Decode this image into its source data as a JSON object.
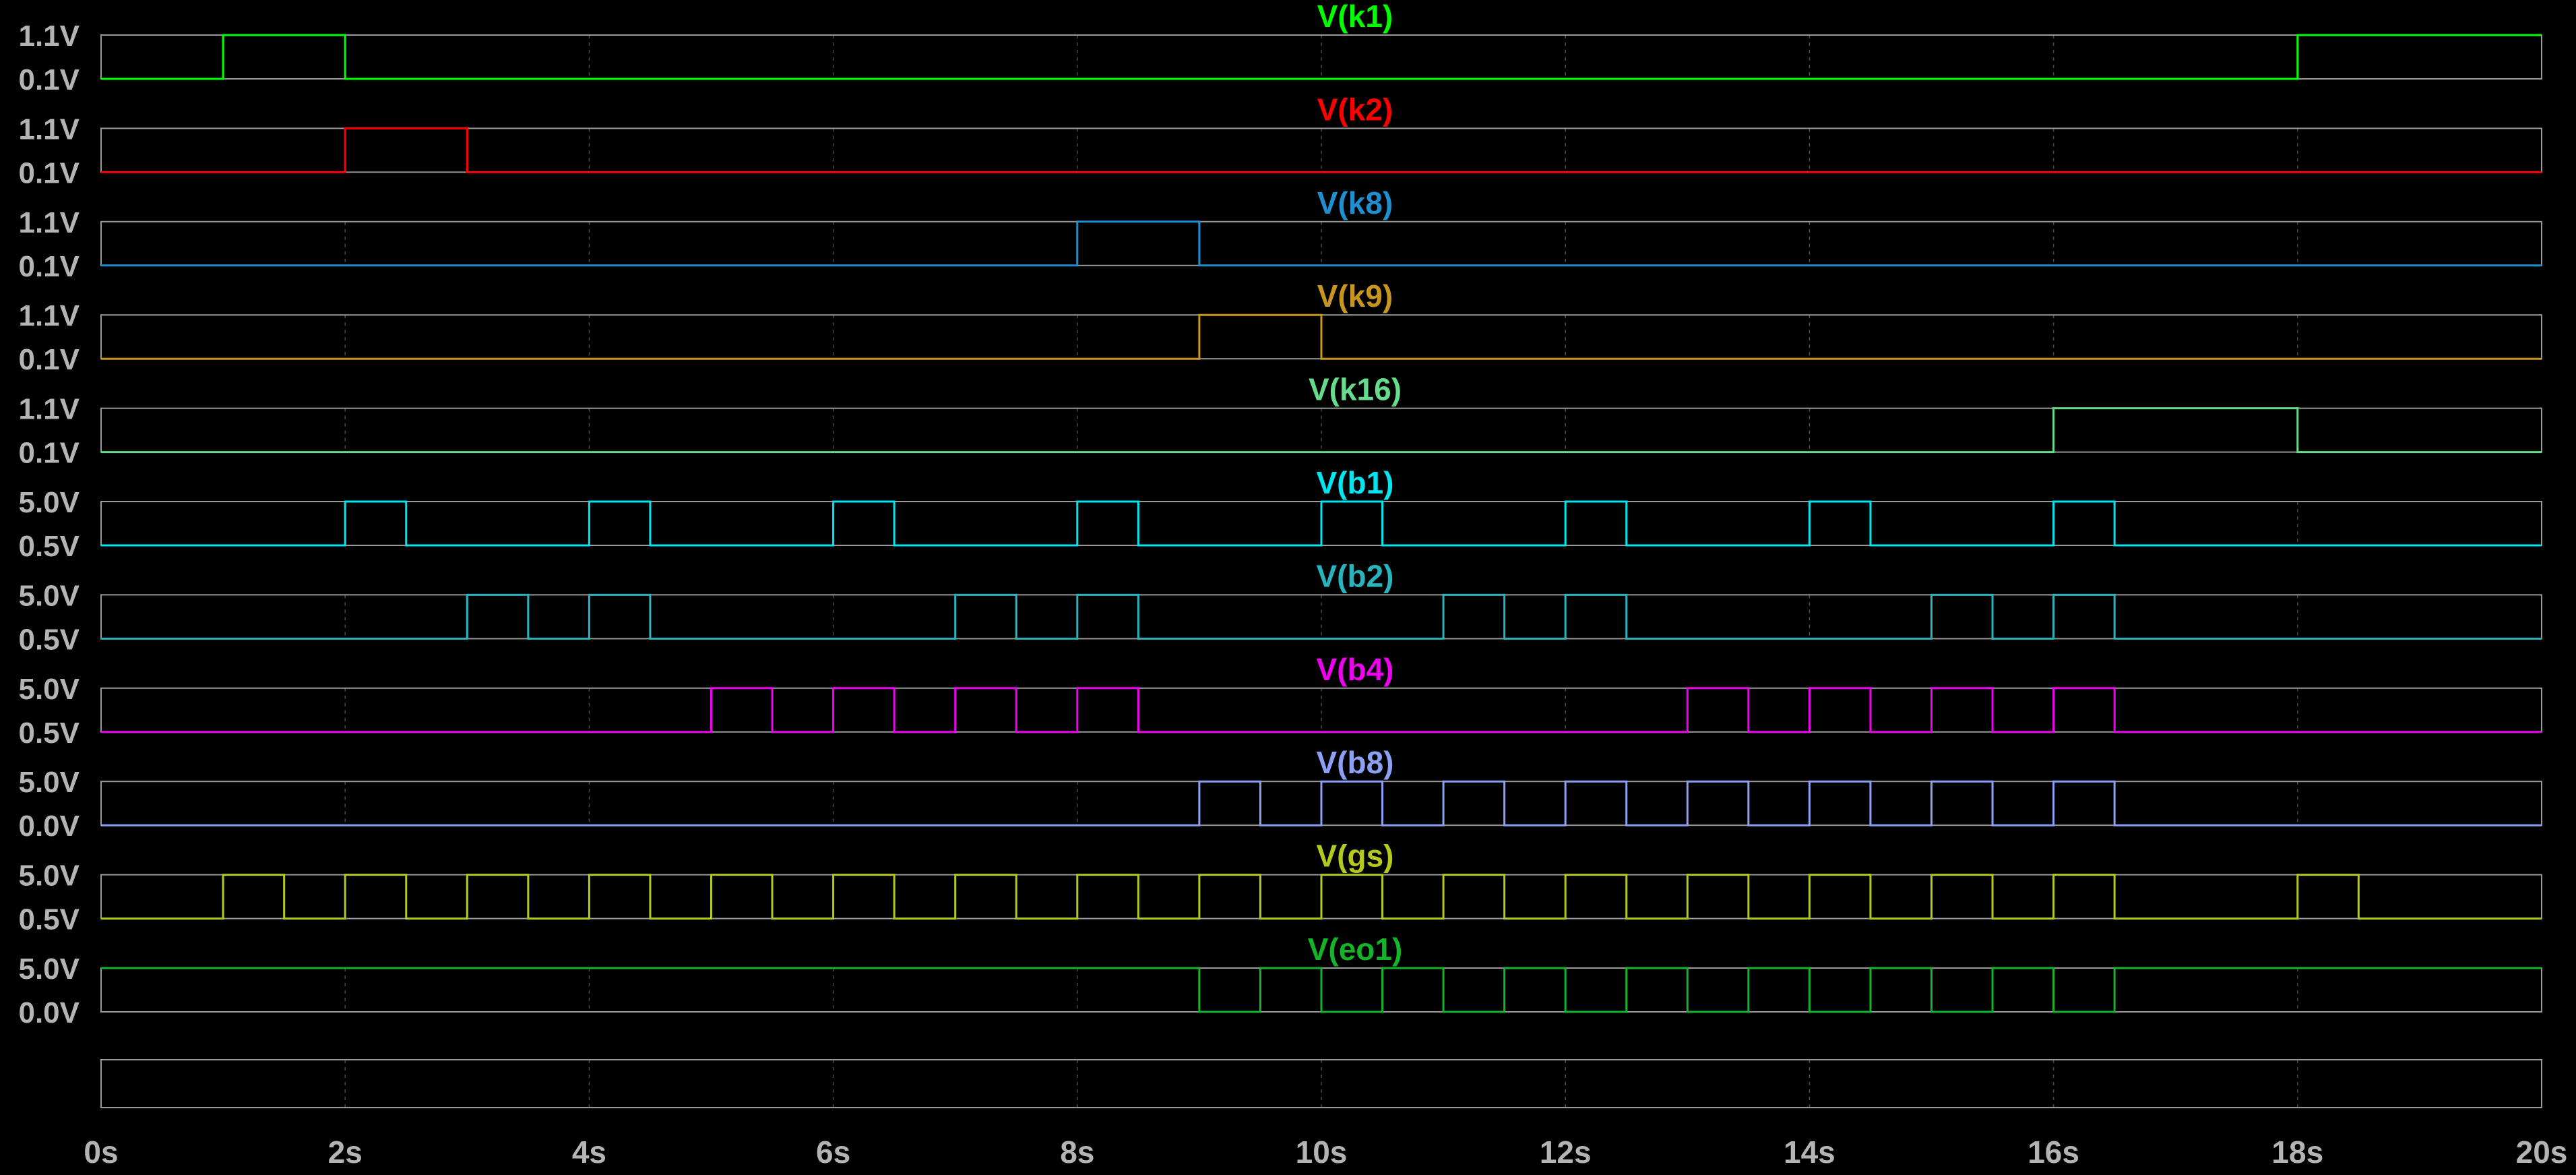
{
  "chart_data": {
    "type": "line",
    "x_range": [
      0,
      20
    ],
    "x_ticks": [
      "0s",
      "2s",
      "4s",
      "6s",
      "8s",
      "10s",
      "12s",
      "14s",
      "16s",
      "18s",
      "20s"
    ],
    "x_tick_values": [
      0,
      2,
      4,
      6,
      8,
      10,
      12,
      14,
      16,
      18,
      20
    ],
    "grid": true,
    "series": [
      {
        "name": "V(k1)",
        "color": "#00ff00",
        "ylim": [
          0.1,
          1.1
        ],
        "ytick_labels": [
          "1.1V",
          "0.1V"
        ],
        "high": 1.1,
        "low": 0.1,
        "high_intervals": [
          [
            1,
            2
          ],
          [
            18,
            20
          ]
        ]
      },
      {
        "name": "V(k2)",
        "color": "#ff0000",
        "ylim": [
          0.1,
          1.1
        ],
        "ytick_labels": [
          "1.1V",
          "0.1V"
        ],
        "high": 1.1,
        "low": 0.1,
        "high_intervals": [
          [
            2,
            3
          ]
        ]
      },
      {
        "name": "V(k8)",
        "color": "#1e90d2",
        "ylim": [
          0.1,
          1.1
        ],
        "ytick_labels": [
          "1.1V",
          "0.1V"
        ],
        "high": 1.1,
        "low": 0.1,
        "high_intervals": [
          [
            8,
            9
          ]
        ]
      },
      {
        "name": "V(k9)",
        "color": "#c8961e",
        "ylim": [
          0.1,
          1.1
        ],
        "ytick_labels": [
          "1.1V",
          "0.1V"
        ],
        "high": 1.1,
        "low": 0.1,
        "high_intervals": [
          [
            9,
            10
          ]
        ]
      },
      {
        "name": "V(k16)",
        "color": "#64dc8c",
        "ylim": [
          0.1,
          1.1
        ],
        "ytick_labels": [
          "1.1V",
          "0.1V"
        ],
        "high": 1.1,
        "low": 0.1,
        "high_intervals": [
          [
            16,
            18
          ]
        ]
      },
      {
        "name": "V(b1)",
        "color": "#00e6f0",
        "ylim": [
          0.5,
          5.0
        ],
        "ytick_labels": [
          "5.0V",
          "0.5V"
        ],
        "high": 5.0,
        "low": 0.5,
        "high_intervals": [
          [
            2,
            2.5
          ],
          [
            4,
            4.5
          ],
          [
            6,
            6.5
          ],
          [
            8,
            8.5
          ],
          [
            10,
            10.5
          ],
          [
            12,
            12.5
          ],
          [
            14,
            14.5
          ],
          [
            16,
            16.5
          ]
        ]
      },
      {
        "name": "V(b2)",
        "color": "#28b4be",
        "ylim": [
          0.5,
          5.0
        ],
        "ytick_labels": [
          "5.0V",
          "0.5V"
        ],
        "high": 5.0,
        "low": 0.5,
        "high_intervals": [
          [
            3,
            3.5
          ],
          [
            4,
            4.5
          ],
          [
            7,
            7.5
          ],
          [
            8,
            8.5
          ],
          [
            11,
            11.5
          ],
          [
            12,
            12.5
          ],
          [
            15,
            15.5
          ],
          [
            16,
            16.5
          ]
        ]
      },
      {
        "name": "V(b4)",
        "color": "#f000f0",
        "ylim": [
          0.5,
          5.0
        ],
        "ytick_labels": [
          "5.0V",
          "0.5V"
        ],
        "high": 5.0,
        "low": 0.5,
        "high_intervals": [
          [
            5,
            5.5
          ],
          [
            6,
            6.5
          ],
          [
            7,
            7.5
          ],
          [
            8,
            8.5
          ],
          [
            13,
            13.5
          ],
          [
            14,
            14.5
          ],
          [
            15,
            15.5
          ],
          [
            16,
            16.5
          ]
        ]
      },
      {
        "name": "V(b8)",
        "color": "#8ca0f5",
        "ylim": [
          0.0,
          5.0
        ],
        "ytick_labels": [
          "5.0V",
          "0.0V"
        ],
        "high": 5.0,
        "low": 0.0,
        "high_intervals": [
          [
            9,
            9.5
          ],
          [
            10,
            10.5
          ],
          [
            11,
            11.5
          ],
          [
            12,
            12.5
          ],
          [
            13,
            13.5
          ],
          [
            14,
            14.5
          ],
          [
            15,
            15.5
          ],
          [
            16,
            16.5
          ]
        ]
      },
      {
        "name": "V(gs)",
        "color": "#b4c81e",
        "ylim": [
          0.5,
          5.0
        ],
        "ytick_labels": [
          "5.0V",
          "0.5V"
        ],
        "high": 5.0,
        "low": 0.5,
        "high_intervals": [
          [
            1,
            1.5
          ],
          [
            2,
            2.5
          ],
          [
            3,
            3.5
          ],
          [
            4,
            4.5
          ],
          [
            5,
            5.5
          ],
          [
            6,
            6.5
          ],
          [
            7,
            7.5
          ],
          [
            8,
            8.5
          ],
          [
            9,
            9.5
          ],
          [
            10,
            10.5
          ],
          [
            11,
            11.5
          ],
          [
            12,
            12.5
          ],
          [
            13,
            13.5
          ],
          [
            14,
            14.5
          ],
          [
            15,
            15.5
          ],
          [
            16,
            16.5
          ],
          [
            18,
            18.5
          ]
        ]
      },
      {
        "name": "V(eo1)",
        "color": "#14b428",
        "ylim": [
          0.0,
          5.0
        ],
        "ytick_labels": [
          "5.0V",
          "0.0V"
        ],
        "high": 5.0,
        "low": 0.0,
        "high_intervals": [
          [
            0,
            9
          ],
          [
            9.5,
            10
          ],
          [
            10.5,
            11
          ],
          [
            11.5,
            12
          ],
          [
            12.5,
            13
          ],
          [
            13.5,
            14
          ],
          [
            14.5,
            15
          ],
          [
            15.5,
            16
          ],
          [
            16.5,
            20
          ]
        ]
      }
    ]
  }
}
